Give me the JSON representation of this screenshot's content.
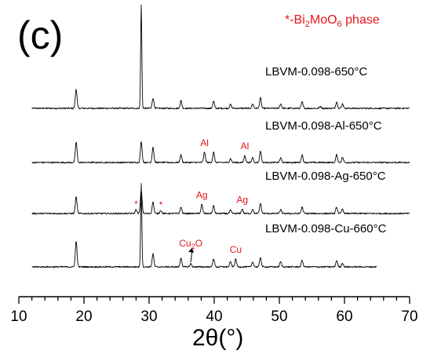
{
  "chart_data": {
    "type": "line",
    "panel_label": "(c)",
    "legend_note": "*-Bi2MoO6 phase",
    "xlabel": "2θ(°)",
    "xlim": [
      10,
      70
    ],
    "x_ticks": [
      10,
      20,
      30,
      40,
      50,
      60,
      70
    ],
    "y_axis_shown": false,
    "grid": false,
    "series_labels_position": "above-each-trace",
    "series": [
      {
        "name": "LBVM-0.098-650°C",
        "x_range": [
          12,
          70
        ],
        "peaks": [
          {
            "x": 18.8,
            "h": 0.3
          },
          {
            "x": 28.8,
            "h": 1.6
          },
          {
            "x": 30.6,
            "h": 0.16
          },
          {
            "x": 34.9,
            "h": 0.12
          },
          {
            "x": 39.9,
            "h": 0.11
          },
          {
            "x": 42.5,
            "h": 0.06
          },
          {
            "x": 45.9,
            "h": 0.07
          },
          {
            "x": 47.1,
            "h": 0.16
          },
          {
            "x": 50.2,
            "h": 0.07
          },
          {
            "x": 53.5,
            "h": 0.1
          },
          {
            "x": 56.3,
            "h": 0.03
          },
          {
            "x": 58.8,
            "h": 0.1
          },
          {
            "x": 59.7,
            "h": 0.07
          }
        ],
        "annotations": []
      },
      {
        "name": "LBVM-0.098-Al-650°C",
        "x_range": [
          12,
          70
        ],
        "peaks": [
          {
            "x": 18.8,
            "h": 0.32
          },
          {
            "x": 28.8,
            "h": 0.32
          },
          {
            "x": 30.6,
            "h": 0.24
          },
          {
            "x": 34.9,
            "h": 0.12
          },
          {
            "x": 38.5,
            "h": 0.16
          },
          {
            "x": 39.9,
            "h": 0.16
          },
          {
            "x": 42.5,
            "h": 0.06
          },
          {
            "x": 44.7,
            "h": 0.11
          },
          {
            "x": 45.9,
            "h": 0.08
          },
          {
            "x": 47.1,
            "h": 0.18
          },
          {
            "x": 50.2,
            "h": 0.07
          },
          {
            "x": 53.5,
            "h": 0.12
          },
          {
            "x": 58.8,
            "h": 0.12
          },
          {
            "x": 59.7,
            "h": 0.08
          }
        ],
        "annotations": [
          {
            "label": "Al",
            "x": 38.5
          },
          {
            "label": "Al",
            "x": 44.7
          }
        ]
      },
      {
        "name": "LBVM-0.098-Ag-650°C",
        "x_range": [
          12,
          70
        ],
        "peaks": [
          {
            "x": 18.8,
            "h": 0.26
          },
          {
            "x": 28.0,
            "h": 0.06
          },
          {
            "x": 28.8,
            "h": 0.36
          },
          {
            "x": 30.6,
            "h": 0.18
          },
          {
            "x": 31.8,
            "h": 0.05
          },
          {
            "x": 34.9,
            "h": 0.1
          },
          {
            "x": 38.1,
            "h": 0.14
          },
          {
            "x": 39.9,
            "h": 0.12
          },
          {
            "x": 42.5,
            "h": 0.05
          },
          {
            "x": 44.3,
            "h": 0.07
          },
          {
            "x": 45.9,
            "h": 0.07
          },
          {
            "x": 47.1,
            "h": 0.16
          },
          {
            "x": 50.2,
            "h": 0.06
          },
          {
            "x": 53.5,
            "h": 0.1
          },
          {
            "x": 58.8,
            "h": 0.1
          },
          {
            "x": 59.7,
            "h": 0.07
          }
        ],
        "annotations": [
          {
            "label": "*",
            "x": 28.0
          },
          {
            "label": "*",
            "x": 31.8
          },
          {
            "label": "Ag",
            "x": 38.1
          },
          {
            "label": "Ag",
            "x": 44.3
          }
        ]
      },
      {
        "name": "LBVM-0.098-Cu-660°C",
        "x_range": [
          12,
          65
        ],
        "peaks": [
          {
            "x": 18.8,
            "h": 0.4
          },
          {
            "x": 28.8,
            "h": 1.3
          },
          {
            "x": 30.6,
            "h": 0.2
          },
          {
            "x": 34.9,
            "h": 0.14
          },
          {
            "x": 36.4,
            "h": 0.05
          },
          {
            "x": 39.9,
            "h": 0.13
          },
          {
            "x": 42.5,
            "h": 0.08
          },
          {
            "x": 43.3,
            "h": 0.12
          },
          {
            "x": 45.9,
            "h": 0.08
          },
          {
            "x": 47.1,
            "h": 0.15
          },
          {
            "x": 50.2,
            "h": 0.08
          },
          {
            "x": 53.5,
            "h": 0.1
          },
          {
            "x": 58.8,
            "h": 0.1
          },
          {
            "x": 59.7,
            "h": 0.06
          }
        ],
        "annotations": [
          {
            "label": "Cu2O",
            "x": 36.4,
            "arrow": true
          },
          {
            "label": "Cu",
            "x": 43.3
          }
        ]
      }
    ]
  }
}
